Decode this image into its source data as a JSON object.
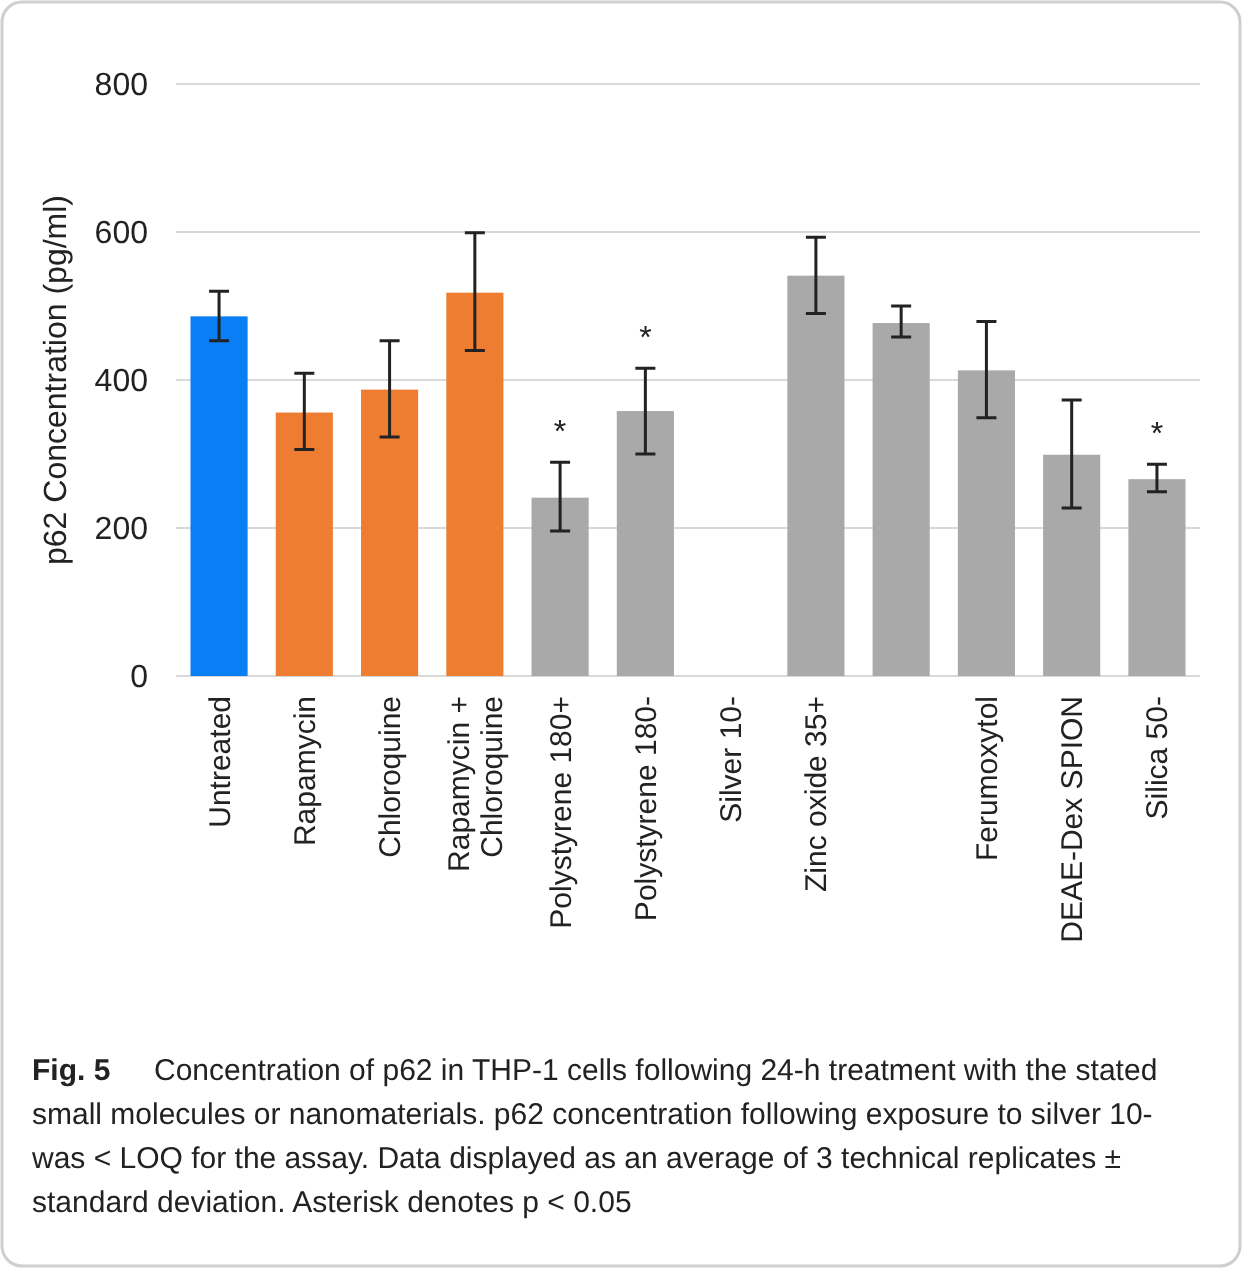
{
  "chart_data": {
    "type": "bar",
    "ylabel": "p62 Concentration (pg/ml)",
    "categories": [
      "Untreated",
      "Rapamycin",
      "Chloroquine",
      "Rapamycin +\nChloroquine",
      "Polystyrene  180+",
      "Polystyrene  180-",
      "Silver 10-",
      "Zinc oxide 35+",
      null,
      "Ferumoxytol",
      "DEAE-Dex SPION",
      "Silica 50-"
    ],
    "values": [
      486,
      356,
      387,
      518,
      241,
      358,
      null,
      541,
      477,
      413,
      299,
      266
    ],
    "errors": [
      [
        453,
        520
      ],
      [
        306,
        409
      ],
      [
        323,
        453
      ],
      [
        440,
        599
      ],
      [
        196,
        289
      ],
      [
        300,
        416
      ],
      null,
      [
        490,
        593
      ],
      [
        458,
        500
      ],
      [
        349,
        479
      ],
      [
        227,
        373
      ],
      [
        249,
        286
      ]
    ],
    "colors": [
      "#0a7ff5",
      "#ef7d31",
      "#ef7d31",
      "#ef7d31",
      "#a9a9a9",
      "#a9a9a9",
      null,
      "#a9a9a9",
      "#a9a9a9",
      "#a9a9a9",
      "#a9a9a9",
      "#a9a9a9"
    ],
    "ylim": [
      0,
      800
    ],
    "yticks": [
      0,
      200,
      400,
      600,
      800
    ],
    "grid": "y",
    "annotations": [
      {
        "text": "*",
        "x": "Polystyrene  180+",
        "y": 289
      },
      {
        "text": "*",
        "x": "Polystyrene  180-",
        "y": 416
      },
      {
        "text": "*",
        "x": "Silica 50-",
        "y": 286
      },
      "Fig. 5",
      "Concentration of p62 in THP-1 cells following 24-h treatment with the stated small molecules or nanomaterials. p62 concentration following exposure to silver 10- was < LOQ for the assay. Data displayed as an average of 3 technical replicates ± standard deviation. Asterisk denotes p < 0.05"
    ]
  }
}
